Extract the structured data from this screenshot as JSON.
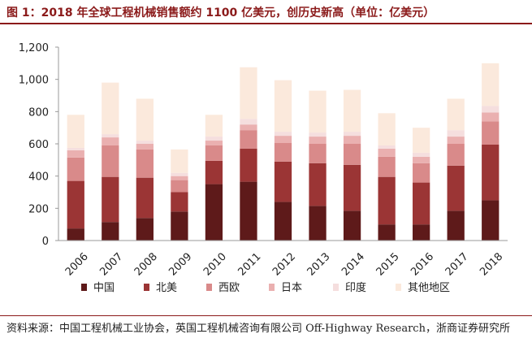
{
  "figure": {
    "title": "图 1：2018 年全球工程机械销售额约 1100 亿美元，创历史新高（单位：亿美元）",
    "source": "资料来源：中国工程机械工业协会，英国工程机械咨询有限公司 Off-Highway Research，浙商证券研究所"
  },
  "chart_data": {
    "type": "bar",
    "stacked": true,
    "title": "2018 年全球工程机械销售额约 1100 亿美元，创历史新高（单位：亿美元）",
    "xlabel": "",
    "ylabel": "",
    "ylim": [
      0,
      1200
    ],
    "yticks": [
      0,
      200,
      400,
      600,
      800,
      1000,
      1200
    ],
    "ytick_labels": [
      "0",
      "200",
      "400",
      "600",
      "800",
      "1,000",
      "1,200"
    ],
    "legend_position": "bottom",
    "categories": [
      "2006",
      "2007",
      "2008",
      "2009",
      "2010",
      "2011",
      "2012",
      "2013",
      "2014",
      "2015",
      "2016",
      "2017",
      "2018"
    ],
    "series": [
      {
        "name": "中国",
        "color": "#5e1a1a",
        "values": [
          75,
          115,
          140,
          180,
          350,
          365,
          240,
          215,
          185,
          100,
          100,
          185,
          250
        ]
      },
      {
        "name": "北美",
        "color": "#9b3535",
        "values": [
          295,
          280,
          250,
          120,
          145,
          205,
          250,
          265,
          285,
          295,
          260,
          280,
          345
        ]
      },
      {
        "name": "西欧",
        "color": "#d98a8a",
        "values": [
          145,
          195,
          175,
          75,
          95,
          115,
          115,
          120,
          130,
          125,
          120,
          135,
          145
        ]
      },
      {
        "name": "日本",
        "color": "#eab0b0",
        "values": [
          45,
          50,
          35,
          25,
          30,
          35,
          45,
          45,
          50,
          50,
          40,
          45,
          55
        ]
      },
      {
        "name": "印度",
        "color": "#f5dede",
        "values": [
          15,
          20,
          20,
          20,
          25,
          35,
          25,
          25,
          25,
          20,
          25,
          40,
          40
        ]
      },
      {
        "name": "其他地区",
        "color": "#fbe9dc",
        "values": [
          205,
          320,
          260,
          145,
          135,
          320,
          320,
          260,
          260,
          200,
          155,
          195,
          265
        ]
      }
    ]
  }
}
